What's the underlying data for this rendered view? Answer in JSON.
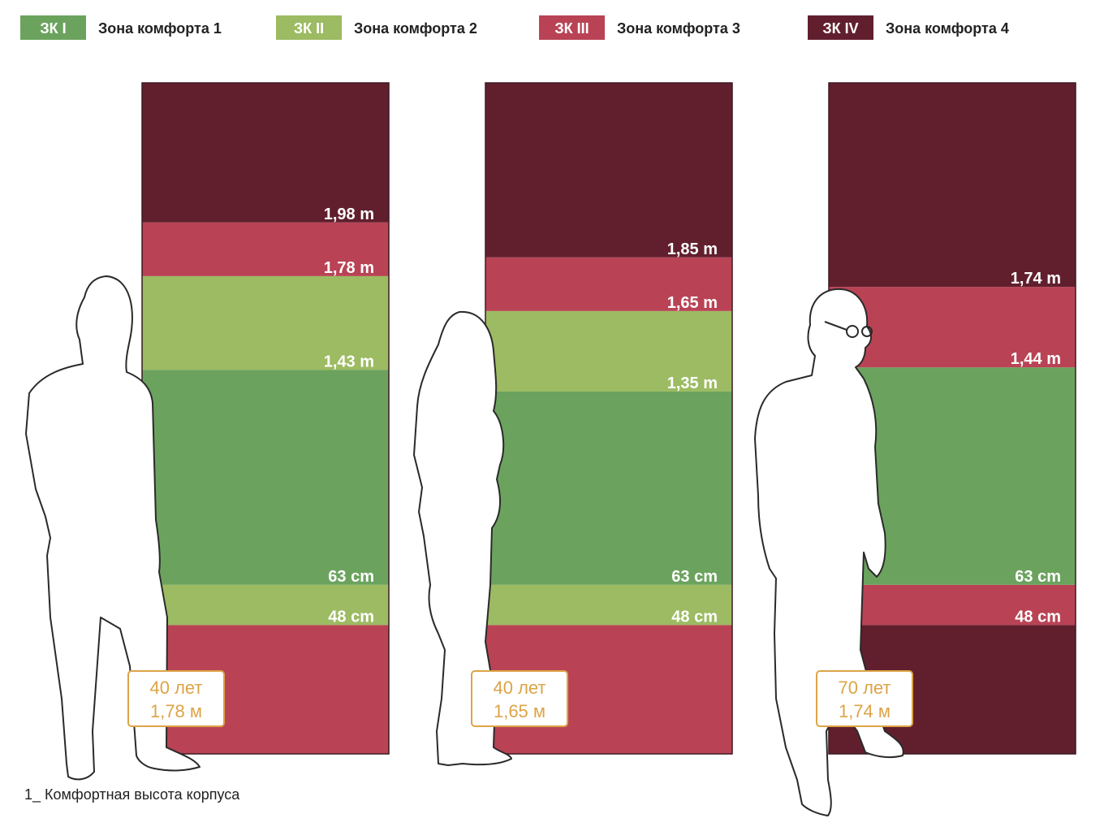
{
  "legend": [
    {
      "badge": "ЗК I",
      "label": "Зона комфорта 1",
      "color": "#6ba35e"
    },
    {
      "badge": "ЗК II",
      "label": "Зона комфорта 2",
      "color": "#9cbb62"
    },
    {
      "badge": "ЗК III",
      "label": "Зона комфорта 3",
      "color": "#b94355"
    },
    {
      "badge": "ЗК IV",
      "label": "Зона комфорта 4",
      "color": "#611f2d"
    }
  ],
  "columns": [
    {
      "person": "man",
      "age": "40 лет",
      "height": "1,78 м",
      "height_m": 1.78,
      "zones": [
        {
          "from": 0,
          "to": 0.48,
          "zone": 3
        },
        {
          "from": 0.48,
          "to": 0.63,
          "zone": 2
        },
        {
          "from": 0.63,
          "to": 1.43,
          "zone": 1
        },
        {
          "from": 1.43,
          "to": 1.78,
          "zone": 2
        },
        {
          "from": 1.78,
          "to": 1.98,
          "zone": 3
        },
        {
          "from": 1.98,
          "to": 2.5,
          "zone": 4
        }
      ],
      "marks": [
        {
          "value": 1.98,
          "label": "1,98 m"
        },
        {
          "value": 1.78,
          "label": "1,78 m"
        },
        {
          "value": 1.43,
          "label": "1,43 m"
        },
        {
          "value": 0.63,
          "label": "63 cm"
        },
        {
          "value": 0.48,
          "label": "48 cm"
        }
      ]
    },
    {
      "person": "woman",
      "age": "40 лет",
      "height": "1,65 м",
      "height_m": 1.65,
      "zones": [
        {
          "from": 0,
          "to": 0.48,
          "zone": 3
        },
        {
          "from": 0.48,
          "to": 0.63,
          "zone": 2
        },
        {
          "from": 0.63,
          "to": 1.35,
          "zone": 1
        },
        {
          "from": 1.35,
          "to": 1.65,
          "zone": 2
        },
        {
          "from": 1.65,
          "to": 1.85,
          "zone": 3
        },
        {
          "from": 1.85,
          "to": 2.5,
          "zone": 4
        }
      ],
      "marks": [
        {
          "value": 1.85,
          "label": "1,85 m"
        },
        {
          "value": 1.65,
          "label": "1,65 m"
        },
        {
          "value": 1.35,
          "label": "1,35 m"
        },
        {
          "value": 0.63,
          "label": "63 cm"
        },
        {
          "value": 0.48,
          "label": "48 cm"
        }
      ]
    },
    {
      "person": "elder",
      "age": "70 лет",
      "height": "1,74 м",
      "height_m": 1.74,
      "zones": [
        {
          "from": 0,
          "to": 0.48,
          "zone": 4
        },
        {
          "from": 0.48,
          "to": 0.63,
          "zone": 3
        },
        {
          "from": 0.63,
          "to": 1.44,
          "zone": 1
        },
        {
          "from": 1.44,
          "to": 1.74,
          "zone": 3
        },
        {
          "from": 1.74,
          "to": 2.5,
          "zone": 4
        }
      ],
      "marks": [
        {
          "value": 1.74,
          "label": "1,74 m"
        },
        {
          "value": 1.44,
          "label": "1,44 m"
        },
        {
          "value": 0.63,
          "label": "63 cm"
        },
        {
          "value": 0.48,
          "label": "48 cm"
        }
      ]
    }
  ],
  "caption": "1_ Комфортная высота корпуса",
  "info_box_color": "#dca447"
}
